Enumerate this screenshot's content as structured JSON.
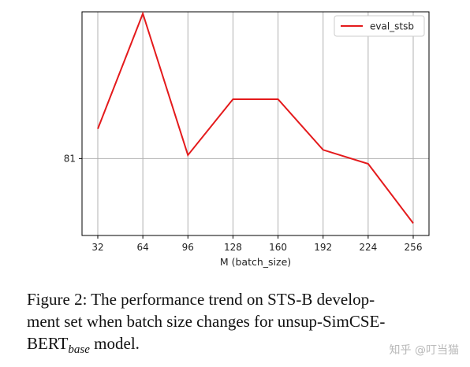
{
  "chart_data": {
    "type": "line",
    "title": "",
    "xlabel": "M (batch_size)",
    "ylabel": "",
    "x": [
      32,
      64,
      96,
      128,
      160,
      192,
      224,
      256
    ],
    "x_tick_labels": [
      "32",
      "64",
      "96",
      "128",
      "160",
      "192",
      "224",
      "256"
    ],
    "y_tick_values": [
      81
    ],
    "y_tick_labels": [
      "81"
    ],
    "ylim": [
      80.78,
      81.42
    ],
    "series": [
      {
        "name": "eval_stsb",
        "color": "#e41a1c",
        "values": [
          81.085,
          81.415,
          81.01,
          81.17,
          81.17,
          81.025,
          80.985,
          80.815
        ]
      }
    ],
    "grid": true,
    "legend_position": "top-right"
  },
  "caption": {
    "line1": "Figure 2: The performance trend on STS-B develop-",
    "line2": "ment set when batch size changes for unsup-SimCSE-",
    "line3_main": "BERT",
    "line3_sub": "base",
    "line3_rest": " model."
  },
  "watermark": "知乎 @叮当猫"
}
